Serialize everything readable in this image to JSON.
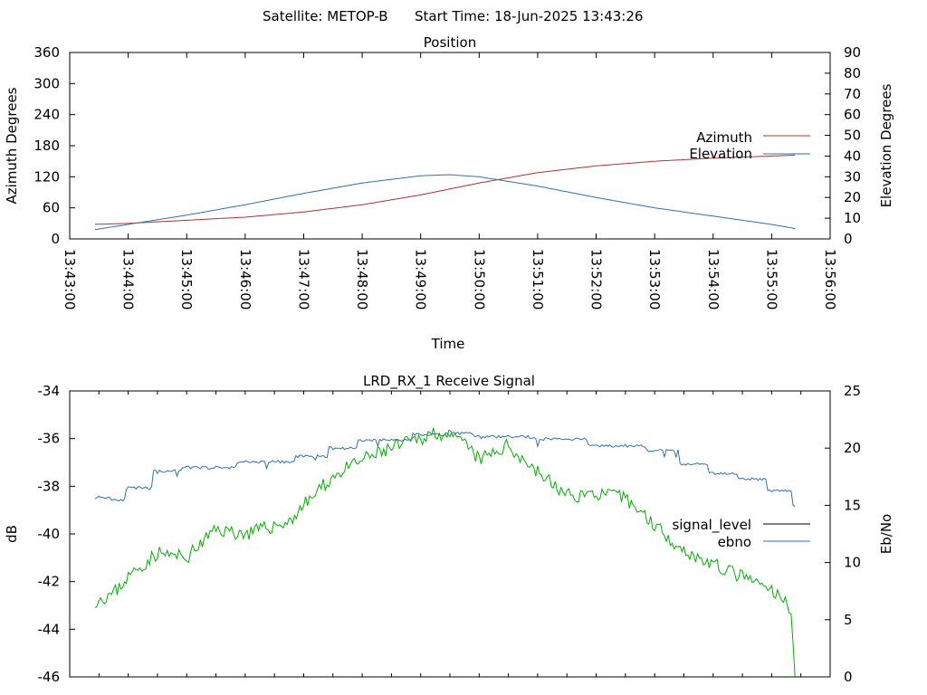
{
  "header": {
    "satellite_label": "Satellite: METOP-B",
    "start_label": "Start Time: 18-Jun-2025 13:43:26"
  },
  "colors": {
    "azimuth": "#b03030",
    "elevation": "#3070b0",
    "signal_level": "#000000",
    "ebno_line": "#3070b0",
    "signal_trace": "#00b000"
  },
  "chart_data": [
    {
      "type": "line",
      "title": "Position",
      "xlabel": "Time",
      "ylabel": "Azimuth Degrees",
      "y2label": "Elevation Degrees",
      "xlim": [
        "13:43:00",
        "13:56:00"
      ],
      "xticks": [
        "13:43:00",
        "13:44:00",
        "13:45:00",
        "13:46:00",
        "13:47:00",
        "13:48:00",
        "13:49:00",
        "13:50:00",
        "13:51:00",
        "13:52:00",
        "13:53:00",
        "13:54:00",
        "13:55:00",
        "13:56:00"
      ],
      "ylim": [
        0,
        360
      ],
      "yticks": [
        0,
        60,
        120,
        180,
        240,
        300,
        360
      ],
      "y2lim": [
        0,
        90
      ],
      "y2ticks": [
        0,
        10,
        20,
        30,
        40,
        50,
        60,
        70,
        80,
        90
      ],
      "legend_position": "right",
      "series": [
        {
          "name": "Azimuth",
          "axis": "left",
          "x": [
            "13:43:26",
            "13:44:00",
            "13:45:00",
            "13:46:00",
            "13:47:00",
            "13:48:00",
            "13:49:00",
            "13:50:00",
            "13:51:00",
            "13:52:00",
            "13:53:00",
            "13:54:00",
            "13:55:00",
            "13:55:24"
          ],
          "values": [
            28,
            30,
            36,
            42,
            52,
            66,
            85,
            108,
            128,
            141,
            150,
            156,
            160,
            162
          ]
        },
        {
          "name": "Elevation",
          "axis": "right",
          "x": [
            "13:43:26",
            "13:44:00",
            "13:45:00",
            "13:46:00",
            "13:47:00",
            "13:48:00",
            "13:49:00",
            "13:49:30",
            "13:50:00",
            "13:51:00",
            "13:52:00",
            "13:53:00",
            "13:54:00",
            "13:55:00",
            "13:55:24"
          ],
          "values": [
            4.5,
            7,
            11.5,
            16.5,
            22,
            27,
            30.5,
            31,
            30,
            25.5,
            20,
            15,
            11,
            7,
            5
          ]
        }
      ]
    },
    {
      "type": "line",
      "title": "LRD_RX_1 Receive Signal",
      "xlabel": "",
      "ylabel": "dB",
      "y2label": "Eb/No",
      "ylim": [
        -46,
        -34
      ],
      "yticks": [
        -46,
        -44,
        -42,
        -40,
        -38,
        -36,
        -34
      ],
      "y2lim": [
        0,
        25
      ],
      "y2ticks": [
        0,
        5,
        10,
        15,
        20,
        25
      ],
      "legend_position": "right",
      "series": [
        {
          "name": "signal_level",
          "axis": "left",
          "x": [
            "13:43:26",
            "13:43:45",
            "13:44:00",
            "13:44:30",
            "13:45:00",
            "13:45:30",
            "13:46:00",
            "13:46:45",
            "13:47:00",
            "13:47:30",
            "13:48:00",
            "13:48:30",
            "13:49:00",
            "13:49:15",
            "13:49:45",
            "13:50:00",
            "13:50:30",
            "13:51:00",
            "13:51:30",
            "13:52:00",
            "13:52:30",
            "13:53:00",
            "13:53:30",
            "13:54:00",
            "13:54:30",
            "13:55:00",
            "13:55:20",
            "13:55:24"
          ],
          "values": [
            -42.8,
            -42.5,
            -41.8,
            -40.8,
            -41.0,
            -39.8,
            -40.0,
            -39.5,
            -38.8,
            -37.6,
            -36.9,
            -36.4,
            -36.0,
            -35.7,
            -36.2,
            -36.9,
            -36.3,
            -37.4,
            -38.4,
            -38.3,
            -38.5,
            -39.6,
            -40.7,
            -41.3,
            -41.8,
            -42.4,
            -43.1,
            -46.0
          ]
        },
        {
          "name": "ebno",
          "axis": "right",
          "x": [
            "13:43:26",
            "13:43:45",
            "13:44:00",
            "13:44:30",
            "13:45:00",
            "13:46:00",
            "13:47:00",
            "13:47:30",
            "13:48:00",
            "13:49:00",
            "13:49:30",
            "13:50:00",
            "13:51:00",
            "13:52:00",
            "13:53:00",
            "13:53:30",
            "13:54:00",
            "13:54:30",
            "13:55:00",
            "13:55:24"
          ],
          "values": [
            15.7,
            15.5,
            16.5,
            18.0,
            18.3,
            18.8,
            19.3,
            20.0,
            20.7,
            21.2,
            21.3,
            21.0,
            20.8,
            20.2,
            19.8,
            18.6,
            17.8,
            17.3,
            16.3,
            14.9
          ]
        }
      ]
    }
  ]
}
